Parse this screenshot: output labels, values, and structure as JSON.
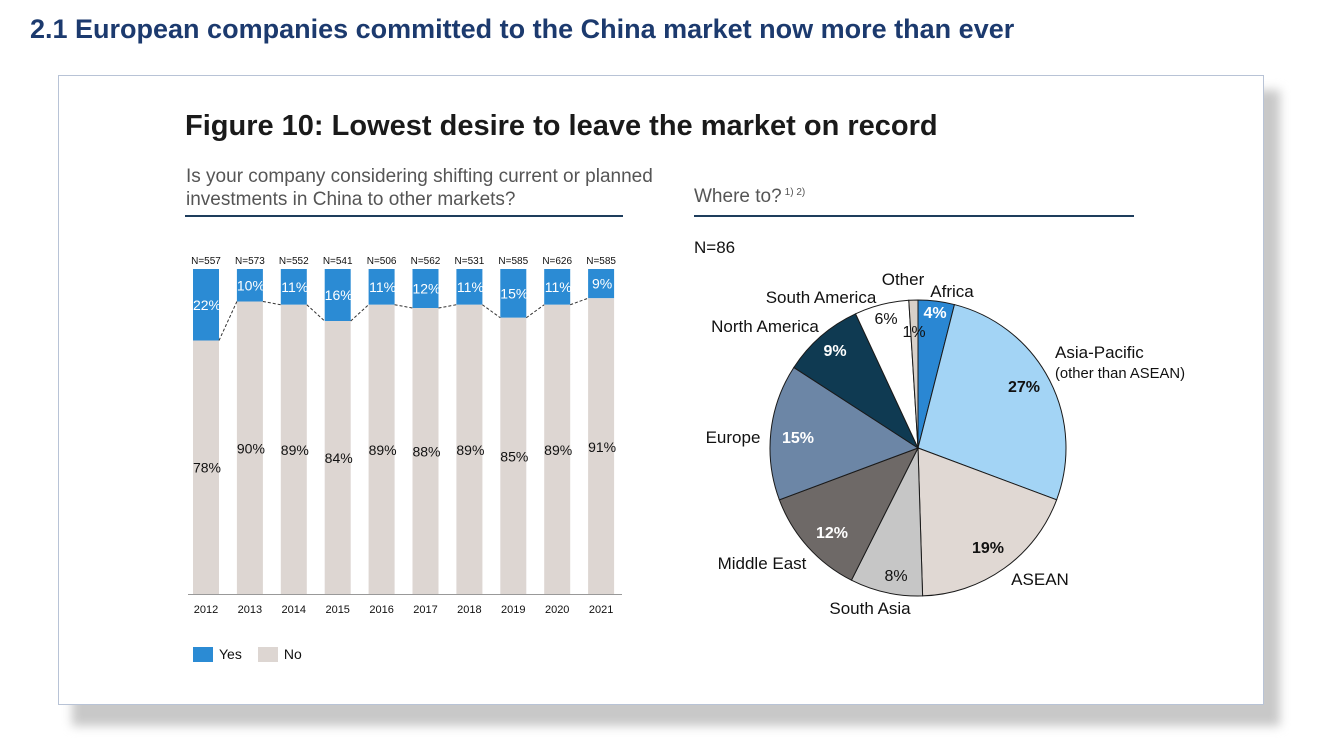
{
  "section_title": "2.1  European companies committed to the China market now more than ever",
  "figure_title": "Figure 10: Lowest desire to leave the market on record",
  "left_question": "Is your company considering shifting current or planned investments in China to other markets?",
  "right_question": "Where to?",
  "right_question_sup": "1) 2)",
  "colors": {
    "yes": "#2b8bd4",
    "no": "#ddd6d2",
    "title": "#1c3a6e",
    "rule": "#1e3d5c"
  },
  "chart_data": [
    {
      "type": "bar",
      "stacked": true,
      "categories": [
        "2012",
        "2013",
        "2014",
        "2015",
        "2016",
        "2017",
        "2018",
        "2019",
        "2020",
        "2021"
      ],
      "n_labels": [
        "N=557",
        "N=573",
        "N=552",
        "N=541",
        "N=506",
        "N=562",
        "N=531",
        "N=585",
        "N=626",
        "N=585"
      ],
      "series": [
        {
          "name": "Yes",
          "values": [
            22,
            10,
            11,
            16,
            11,
            12,
            11,
            15,
            11,
            9
          ]
        },
        {
          "name": "No",
          "values": [
            78,
            90,
            89,
            84,
            89,
            88,
            89,
            85,
            89,
            91
          ]
        }
      ],
      "data_labels_yes": [
        "22%",
        "10%",
        "11%",
        "16%",
        "11%",
        "12%",
        "11%",
        "15%",
        "11%",
        "9%"
      ],
      "data_labels_no": [
        "78%",
        "90%",
        "89%",
        "84%",
        "89%",
        "88%",
        "89%",
        "85%",
        "89%",
        "91%"
      ],
      "ylim": [
        0,
        100
      ],
      "legend": [
        "Yes",
        "No"
      ],
      "legend_position": "bottom-left"
    },
    {
      "type": "pie",
      "n_label": "N=86",
      "slices": [
        {
          "label": "Africa",
          "value": 4,
          "value_label": "4%",
          "color": "#2a87d3"
        },
        {
          "label": "Asia-Pacific",
          "sublabel": "(other than ASEAN)",
          "value": 27,
          "value_label": "27%",
          "color": "#a3d4f5"
        },
        {
          "label": "ASEAN",
          "value": 19,
          "value_label": "19%",
          "color": "#e0d8d3"
        },
        {
          "label": "South Asia",
          "value": 8,
          "value_label": "8%",
          "color": "#c6c6c6"
        },
        {
          "label": "Middle East",
          "value": 12,
          "value_label": "12%",
          "color": "#6e6967"
        },
        {
          "label": "Europe",
          "value": 15,
          "value_label": "15%",
          "color": "#6c86a6"
        },
        {
          "label": "North America",
          "value": 9,
          "value_label": "9%",
          "color": "#0f3a52"
        },
        {
          "label": "South America",
          "value": 6,
          "value_label": "6%",
          "color": "#ffffff"
        },
        {
          "label": "Other",
          "value": 1,
          "value_label": "1%",
          "color": "#d8d0c9"
        }
      ]
    }
  ]
}
